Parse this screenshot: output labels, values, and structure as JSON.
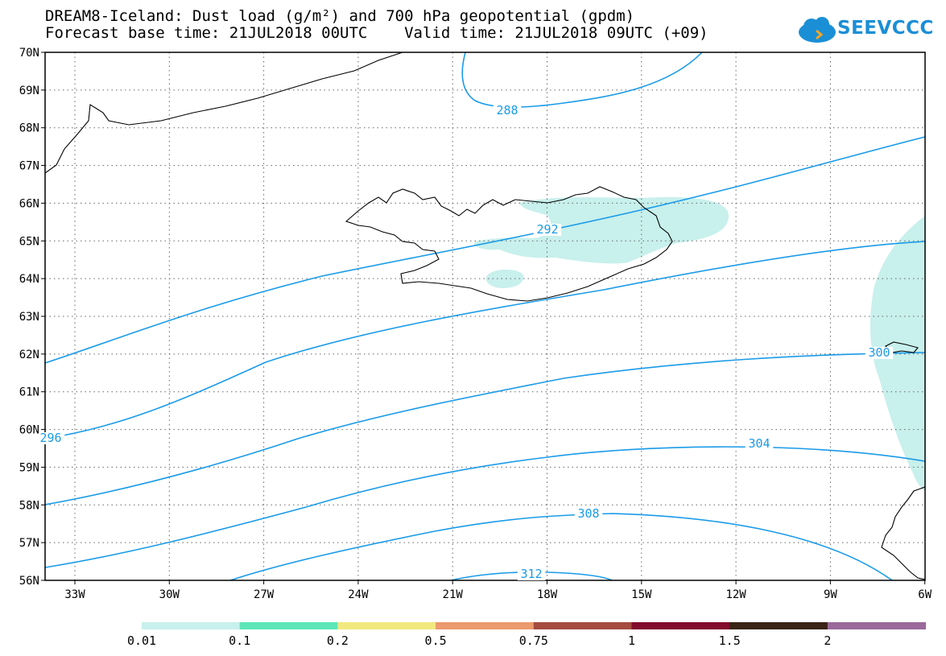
{
  "header": {
    "title_line1": "DREAM8-Iceland: Dust load (g/m²) and 700 hPa geopotential (gpdm)",
    "title_line2": "Forecast base time: 21JUL2018 00UTC    Valid time: 21JUL2018 09UTC (+09)"
  },
  "logo": {
    "text": "SEEVCCC",
    "icon": "cloud-icon"
  },
  "map": {
    "lat_labels": [
      "56N",
      "57N",
      "58N",
      "59N",
      "60N",
      "61N",
      "62N",
      "63N",
      "64N",
      "65N",
      "66N",
      "67N",
      "68N",
      "69N",
      "70N"
    ],
    "lon_labels": [
      "33W",
      "30W",
      "27W",
      "24W",
      "21W",
      "18W",
      "15W",
      "12W",
      "9W",
      "6W"
    ],
    "contour_labels": [
      "288",
      "292",
      "296",
      "300",
      "304",
      "308",
      "312"
    ],
    "contour_color": "#1a9be8",
    "dust_color": "#c8f0ec",
    "coast_color": "#000000"
  },
  "colorbar": {
    "colors": [
      "#c8f0ec",
      "#5ce6b8",
      "#f2e880",
      "#ec9a6e",
      "#a44c40",
      "#820b2e",
      "#3a2416",
      "#9a6a9a"
    ],
    "labels": [
      "0.01",
      "0.1",
      "0.2",
      "0.5",
      "0.75",
      "1",
      "1.5",
      "2"
    ]
  }
}
